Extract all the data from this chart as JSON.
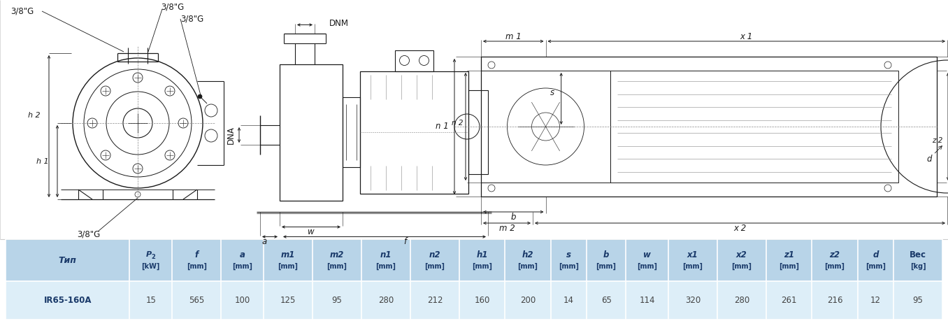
{
  "bg_color": "#ffffff",
  "line_color": "#1a1a1a",
  "dim_color": "#1a1a1a",
  "gray_color": "#888888",
  "table_header_bg": "#b8d4e8",
  "table_row_bg": "#ddeef8",
  "table_header_color": "#1a3a6a",
  "table_value_color": "#444444",
  "col_headers_line1": [
    "Тип",
    "P2",
    "f",
    "a",
    "m1",
    "m2",
    "n1",
    "n2",
    "h1",
    "h2",
    "s",
    "b",
    "w",
    "x1",
    "x2",
    "z1",
    "z2",
    "d",
    "Вес"
  ],
  "col_headers_line2": [
    "",
    "[kW]",
    "[mm]",
    "[mm]",
    "[mm]",
    "[mm]",
    "[mm]",
    "[mm]",
    "[mm]",
    "[mm]",
    "[mm]",
    "[mm]",
    "[mm]",
    "[mm]",
    "[mm]",
    "[mm]",
    "[mm]",
    "[mm]",
    "[kg]"
  ],
  "row": [
    "IR65-160A",
    "15",
    "565",
    "100",
    "125",
    "95",
    "280",
    "212",
    "160",
    "200",
    "14",
    "65",
    "114",
    "320",
    "280",
    "261",
    "216",
    "12",
    "95"
  ],
  "col_widths_rel": [
    1.9,
    0.65,
    0.75,
    0.65,
    0.75,
    0.75,
    0.75,
    0.75,
    0.7,
    0.7,
    0.55,
    0.6,
    0.65,
    0.75,
    0.75,
    0.7,
    0.7,
    0.55,
    0.75
  ]
}
